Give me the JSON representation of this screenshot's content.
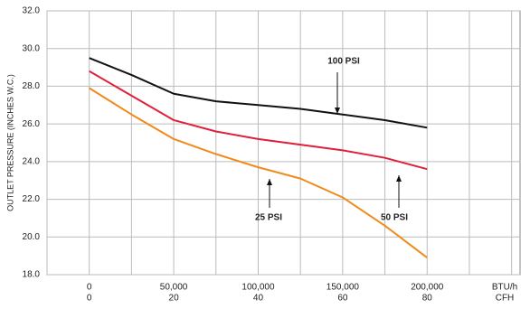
{
  "chart_data": {
    "type": "line",
    "y_label": "OUTLET PRESSURE (INCHES W.C.)",
    "x": [
      0,
      25000,
      50000,
      75000,
      100000,
      125000,
      150000,
      175000,
      200000
    ],
    "series": [
      {
        "name": "100 PSI",
        "color": "#111111",
        "values": [
          29.5,
          28.6,
          27.6,
          27.2,
          27.0,
          26.8,
          26.5,
          26.2,
          25.8
        ]
      },
      {
        "name": "50 PSI",
        "color": "#e0203a",
        "values": [
          28.8,
          27.5,
          26.2,
          25.6,
          25.2,
          24.9,
          24.6,
          24.2,
          23.6
        ]
      },
      {
        "name": "25 PSI",
        "color": "#f08a1c",
        "values": [
          27.9,
          26.5,
          25.2,
          24.4,
          23.7,
          23.1,
          22.1,
          20.6,
          18.9
        ]
      }
    ],
    "xlim": [
      -25000,
      255000
    ],
    "xticks": [
      0,
      {
        "value": 50000,
        "label": "50,000"
      },
      {
        "value": 100000,
        "label": "100,000"
      },
      {
        "value": 150000,
        "label": "150,000"
      },
      {
        "value": 200000,
        "label": "200,000"
      }
    ],
    "cfh_labels": [
      0,
      20,
      40,
      60,
      80
    ],
    "x_units": [
      "BTU/h",
      "CFH"
    ],
    "xgrid": [
      -25000,
      0,
      25000,
      50000,
      75000,
      100000,
      125000,
      150000,
      175000,
      200000,
      225000,
      250000
    ],
    "ylim": [
      18,
      32
    ],
    "yticks": [
      {
        "value": 18,
        "label": "18.0"
      },
      {
        "value": 20,
        "label": "20.0"
      },
      {
        "value": 22,
        "label": "22.0"
      },
      {
        "value": 24,
        "label": "24.0"
      },
      {
        "value": 26,
        "label": "26.0"
      },
      {
        "value": 28,
        "label": "28.0"
      },
      {
        "value": 30,
        "label": "30.0"
      },
      {
        "value": 32,
        "label": "32.0"
      }
    ],
    "grid": true
  }
}
